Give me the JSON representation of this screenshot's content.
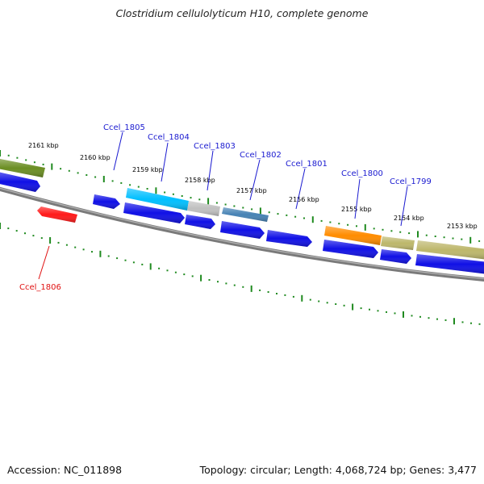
{
  "title": "Clostridium cellulolyticum H10, complete genome",
  "footer": {
    "accession": "Accession: NC_011898",
    "summary": "Topology: circular; Length: 4,068,724 bp; Genes: 3,477"
  },
  "colors": {
    "background": "#ffffff",
    "backbone": "#8a8a8a",
    "tick": "#1f8a1f",
    "cds": "#1010e6",
    "label": "#1a1ad0",
    "label_highlight": "#e01010",
    "highlight_gene": "#ff1a1a"
  },
  "kbp_labels": [
    "2161 kbp",
    "2160 kbp",
    "2159 kbp",
    "2158 kbp",
    "2157 kbp",
    "2156 kbp",
    "2155 kbp",
    "2154 kbp",
    "2153 kbp"
  ],
  "gene_labels": [
    {
      "id": "Ccel_1805",
      "color": "#1a1ad0"
    },
    {
      "id": "Ccel_1804",
      "color": "#1a1ad0"
    },
    {
      "id": "Ccel_1803",
      "color": "#1a1ad0"
    },
    {
      "id": "Ccel_1802",
      "color": "#1a1ad0"
    },
    {
      "id": "Ccel_1801",
      "color": "#1a1ad0"
    },
    {
      "id": "Ccel_1800",
      "color": "#1a1ad0"
    },
    {
      "id": "Ccel_1799",
      "color": "#1a1ad0"
    },
    {
      "id": "Ccel_1806",
      "color": "#e01010"
    }
  ],
  "annotation_colors": [
    "#6b8e23",
    "#00bfff",
    "#c0c0c0",
    "#4682b4",
    "#ff8c00",
    "#bdb76b",
    "#bdb76b"
  ]
}
